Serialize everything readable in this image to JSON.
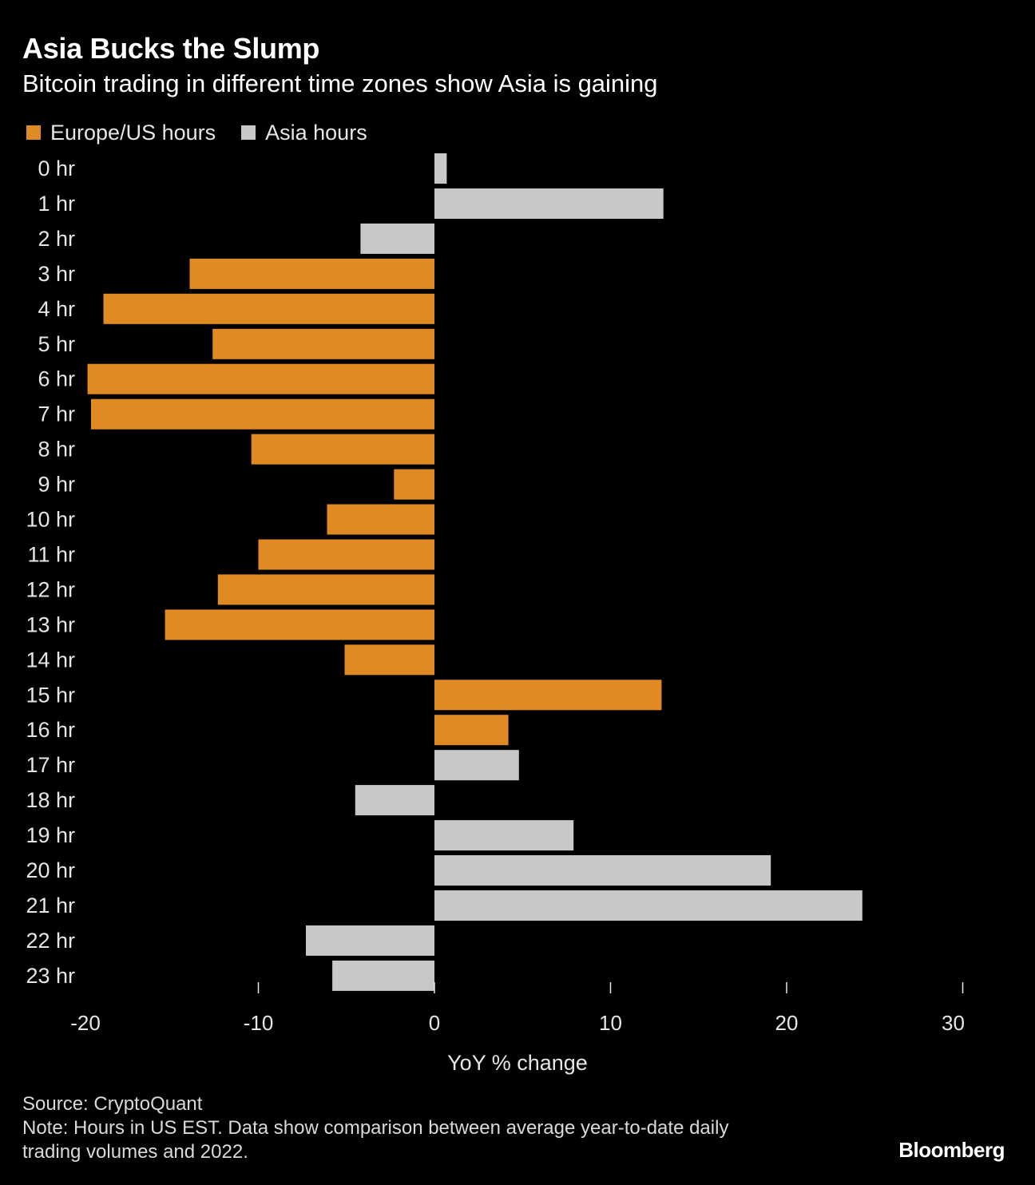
{
  "header": {
    "title": "Asia Bucks the Slump",
    "subtitle": "Bitcoin trading in different time zones show Asia is gaining"
  },
  "legend": {
    "items": [
      {
        "label": "Europe/US hours",
        "color": "#e08a24"
      },
      {
        "label": "Asia hours",
        "color": "#c8c8c8"
      }
    ]
  },
  "colors": {
    "europe_us": "#e08a24",
    "asia": "#c8c8c8",
    "background": "#000000"
  },
  "chart_data": {
    "type": "bar",
    "orientation": "horizontal",
    "title": "Asia Bucks the Slump",
    "subtitle": "Bitcoin trading in different time zones show Asia is gaining",
    "xlabel": "YoY % change",
    "ylabel": "",
    "xlim": [
      -20,
      30
    ],
    "xticks": [
      -20,
      -10,
      0,
      10,
      20,
      30
    ],
    "xtick_labels": [
      "-20",
      "-10",
      "0",
      "10",
      "20",
      "30"
    ],
    "grid": false,
    "legend_position": "top-left",
    "categories": [
      "0 hr",
      "1 hr",
      "2 hr",
      "3 hr",
      "4 hr",
      "5 hr",
      "6 hr",
      "7 hr",
      "8 hr",
      "9 hr",
      "10 hr",
      "11 hr",
      "12 hr",
      "13 hr",
      "14 hr",
      "15 hr",
      "16 hr",
      "17 hr",
      "18 hr",
      "19 hr",
      "20 hr",
      "21 hr",
      "22 hr",
      "23 hr"
    ],
    "values": [
      0.7,
      13.0,
      -4.2,
      -13.9,
      -18.8,
      -12.6,
      -19.7,
      -19.5,
      -10.4,
      -2.3,
      -6.1,
      -10.0,
      -12.3,
      -15.3,
      -5.1,
      12.9,
      4.2,
      4.8,
      -4.5,
      7.9,
      19.1,
      24.3,
      -7.3,
      -5.8
    ],
    "groups": [
      "Asia hours",
      "Asia hours",
      "Asia hours",
      "Europe/US hours",
      "Europe/US hours",
      "Europe/US hours",
      "Europe/US hours",
      "Europe/US hours",
      "Europe/US hours",
      "Europe/US hours",
      "Europe/US hours",
      "Europe/US hours",
      "Europe/US hours",
      "Europe/US hours",
      "Europe/US hours",
      "Europe/US hours",
      "Europe/US hours",
      "Asia hours",
      "Asia hours",
      "Asia hours",
      "Asia hours",
      "Asia hours",
      "Asia hours",
      "Asia hours"
    ],
    "series": [
      {
        "name": "Europe/US hours",
        "color": "#e08a24"
      },
      {
        "name": "Asia hours",
        "color": "#c8c8c8"
      }
    ]
  },
  "footer": {
    "source": "Source: CryptoQuant",
    "note_line1": "Note: Hours in US EST. Data show comparison between average year-to-date daily",
    "note_line2": "trading volumes and 2022.",
    "brand": "Bloomberg"
  }
}
